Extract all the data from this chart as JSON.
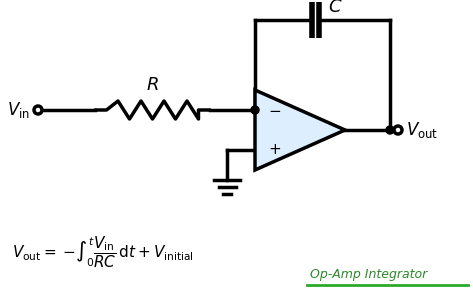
{
  "bg_color": "#ffffff",
  "line_color": "#000000",
  "opamp_fill": "#ddeeff",
  "text_color": "#000000",
  "label_color": "#2a8a2a",
  "title": "Op-Amp Integrator",
  "lw": 2.5,
  "fig_w": 4.73,
  "fig_h": 3.07,
  "dpi": 100
}
